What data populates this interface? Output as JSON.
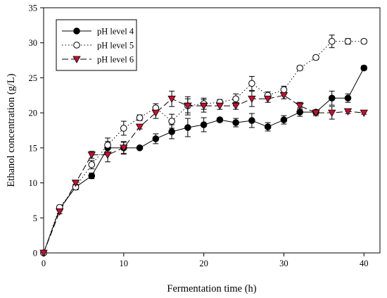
{
  "chart_data": {
    "type": "line",
    "title": "",
    "xlabel": "Fermentation time (h)",
    "ylabel": "Ethanol concentration (g/L)",
    "xlim": [
      0,
      42
    ],
    "ylim": [
      0,
      35
    ],
    "xticks": [
      0,
      10,
      20,
      30,
      40
    ],
    "yticks": [
      0,
      5,
      10,
      15,
      20,
      25,
      30,
      35
    ],
    "grid": false,
    "legend_position": "top-left",
    "x": [
      0,
      2,
      4,
      6,
      8,
      10,
      12,
      14,
      16,
      18,
      20,
      22,
      24,
      26,
      28,
      30,
      32,
      34,
      36,
      38,
      40
    ],
    "series": [
      {
        "name": "pH level 4",
        "line_style": "solid",
        "marker": "filled-circle",
        "color": "#000000",
        "values": [
          0,
          6.3,
          9.4,
          11.0,
          15.0,
          15.0,
          15.0,
          16.3,
          17.3,
          17.9,
          18.3,
          19.0,
          18.6,
          18.9,
          18.0,
          19.0,
          20.1,
          20.1,
          22.1,
          22.1,
          26.4
        ],
        "errors": [
          0,
          0.3,
          0.3,
          0.4,
          0.9,
          0.9,
          0.2,
          0.7,
          1.0,
          1.3,
          1.0,
          0.3,
          0.6,
          1.0,
          0.6,
          0.6,
          0.6,
          0.3,
          1.0,
          0.6,
          0.3
        ]
      },
      {
        "name": "pH level 5",
        "line_style": "dotted",
        "marker": "open-circle",
        "color": "#000000",
        "values": [
          0,
          6.5,
          9.4,
          12.6,
          15.4,
          17.8,
          19.3,
          20.7,
          18.8,
          21.0,
          21.3,
          21.5,
          22.0,
          24.2,
          22.5,
          23.3,
          26.4,
          27.9,
          30.2,
          30.2,
          30.2
        ],
        "errors": [
          0,
          0.3,
          0.4,
          0.6,
          1.0,
          1.0,
          0.4,
          0.6,
          1.0,
          1.0,
          0.8,
          0.4,
          0.7,
          1.0,
          0.5,
          0.5,
          0.3,
          0.3,
          0.9,
          0.4,
          0.3
        ]
      },
      {
        "name": "pH level 6",
        "line_style": "dashed",
        "marker": "filled-triangle-down",
        "color": "#c8102e",
        "values": [
          0,
          5.9,
          10.0,
          14.0,
          14.0,
          15.0,
          18.0,
          20.0,
          22.0,
          21.0,
          21.0,
          21.0,
          21.0,
          22.0,
          22.0,
          22.5,
          21.0,
          20.0,
          20.0,
          20.2,
          20.0
        ],
        "errors": [
          0,
          0.3,
          0.3,
          0.5,
          1.0,
          0.8,
          0.3,
          0.8,
          1.1,
          1.3,
          0.9,
          0.5,
          0.5,
          1.1,
          0.5,
          0.5,
          0.5,
          0.4,
          0.9,
          0.3,
          0.2
        ]
      }
    ]
  }
}
